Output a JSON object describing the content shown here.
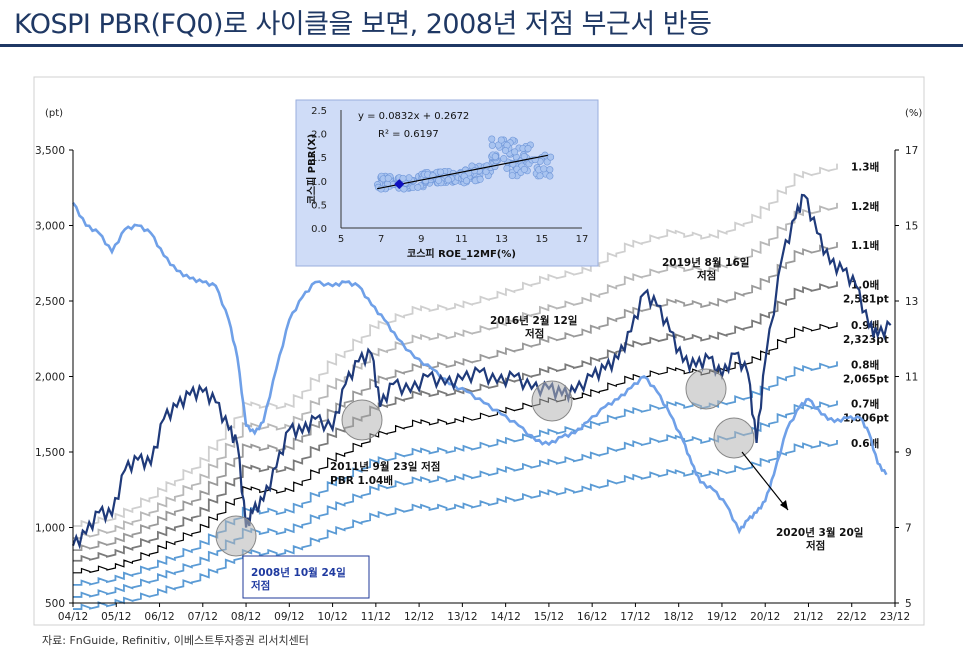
{
  "page": {
    "title": "KOSPI PBR(FQ0)로 사이클을 보면,  2008년 저점 부근서 반등",
    "source": "자료: FnGuide, Refinitiv, 이베스트투자증권 리서치센터"
  },
  "chart_data": [
    {
      "type": "line",
      "x_ticks": [
        "04/12",
        "05/12",
        "06/12",
        "07/12",
        "08/12",
        "09/12",
        "10/12",
        "11/12",
        "12/12",
        "13/12",
        "14/12",
        "15/12",
        "16/12",
        "17/12",
        "18/12",
        "19/12",
        "20/12",
        "21/12",
        "22/12",
        "23/12"
      ],
      "ylabel_left": "(pt)",
      "ylabel_right": "(%)",
      "ylim_left": [
        500,
        3500
      ],
      "yticks_left": [
        "500",
        "1,000",
        "1,500",
        "2,000",
        "2,500",
        "3,000",
        "3,500"
      ],
      "ylim_right": [
        5,
        17
      ],
      "yticks_right": [
        "5",
        "7",
        "9",
        "11",
        "13",
        "15",
        "17"
      ],
      "series": [
        {
          "label": "1.3배",
          "color": "#cfcfcf",
          "values": [
            1010,
            1070,
            1240,
            1440,
            1810,
            1800,
            2080,
            2320,
            2440,
            2460,
            2540,
            2640,
            2700,
            2860,
            2950,
            2920,
            3050,
            3320,
            3390
          ]
        },
        {
          "label": "1.2배",
          "color": "#b8b8b8",
          "values": [
            930,
            990,
            1140,
            1330,
            1670,
            1660,
            1920,
            2140,
            2250,
            2270,
            2340,
            2440,
            2500,
            2640,
            2720,
            2700,
            2820,
            3070,
            3130
          ]
        },
        {
          "label": "1.1배",
          "color": "#9a9a9a",
          "values": [
            850,
            910,
            1050,
            1220,
            1530,
            1520,
            1760,
            1960,
            2060,
            2080,
            2150,
            2230,
            2290,
            2420,
            2490,
            2470,
            2580,
            2810,
            2870
          ]
        },
        {
          "label": "1.0배",
          "sub": "2,581pt",
          "color": "#7a7a7a",
          "values": [
            780,
            830,
            950,
            1110,
            1390,
            1380,
            1600,
            1780,
            1880,
            1890,
            1950,
            2030,
            2080,
            2200,
            2260,
            2250,
            2350,
            2560,
            2610
          ]
        },
        {
          "label": "0.9배",
          "sub": "2,323pt",
          "color": "#000000",
          "values": [
            700,
            740,
            860,
            1000,
            1250,
            1240,
            1440,
            1600,
            1690,
            1700,
            1760,
            1830,
            1870,
            1980,
            2040,
            2020,
            2110,
            2300,
            2340
          ]
        },
        {
          "label": "0.8배",
          "sub": "2,065pt",
          "color": "#5b9bd5",
          "values": [
            620,
            660,
            760,
            890,
            1110,
            1100,
            1280,
            1430,
            1500,
            1510,
            1560,
            1620,
            1660,
            1760,
            1810,
            1800,
            1880,
            2040,
            2080
          ]
        },
        {
          "label": "0.7배",
          "sub": "1,806pt",
          "color": "#5b9bd5",
          "values": [
            540,
            580,
            670,
            780,
            970,
            970,
            1120,
            1250,
            1310,
            1320,
            1370,
            1420,
            1460,
            1540,
            1590,
            1570,
            1640,
            1790,
            1820
          ]
        },
        {
          "label": "0.6배",
          "color": "#5b9bd5",
          "values": [
            460,
            500,
            570,
            670,
            830,
            830,
            960,
            1070,
            1130,
            1130,
            1170,
            1220,
            1250,
            1320,
            1360,
            1350,
            1410,
            1530,
            1560
          ]
        }
      ],
      "kospi": {
        "color": "#1f3a7a",
        "points": [
          [
            0,
            880
          ],
          [
            0.3,
            960
          ],
          [
            0.6,
            1100
          ],
          [
            0.9,
            1080
          ],
          [
            1.2,
            1380
          ],
          [
            1.5,
            1450
          ],
          [
            1.8,
            1420
          ],
          [
            2.1,
            1720
          ],
          [
            2.4,
            1800
          ],
          [
            2.7,
            1880
          ],
          [
            3.0,
            1900
          ],
          [
            3.3,
            1830
          ],
          [
            3.6,
            1650
          ],
          [
            3.8,
            1550
          ],
          [
            4.0,
            1000
          ],
          [
            4.15,
            1100
          ],
          [
            4.4,
            1180
          ],
          [
            4.7,
            1400
          ],
          [
            5.0,
            1650
          ],
          [
            5.3,
            1630
          ],
          [
            5.6,
            1720
          ],
          [
            6.0,
            1650
          ],
          [
            6.3,
            1950
          ],
          [
            6.6,
            2100
          ],
          [
            6.9,
            2150
          ],
          [
            7.1,
            1800
          ],
          [
            7.4,
            1950
          ],
          [
            7.8,
            1900
          ],
          [
            8.2,
            2000
          ],
          [
            8.6,
            1950
          ],
          [
            9.0,
            1980
          ],
          [
            9.4,
            2030
          ],
          [
            9.8,
            1960
          ],
          [
            10.2,
            2000
          ],
          [
            10.6,
            1920
          ],
          [
            11.0,
            1920
          ],
          [
            11.3,
            1880
          ],
          [
            11.6,
            1900
          ],
          [
            12.0,
            2000
          ],
          [
            12.3,
            2050
          ],
          [
            12.6,
            2120
          ],
          [
            12.9,
            2300
          ],
          [
            13.2,
            2550
          ],
          [
            13.5,
            2470
          ],
          [
            13.8,
            2300
          ],
          [
            14.1,
            2100
          ],
          [
            14.4,
            2070
          ],
          [
            14.7,
            2120
          ],
          [
            15.0,
            2000
          ],
          [
            15.3,
            2150
          ],
          [
            15.6,
            2020
          ],
          [
            15.8,
            1560
          ],
          [
            16.0,
            2100
          ],
          [
            16.4,
            2800
          ],
          [
            16.7,
            3050
          ],
          [
            16.9,
            3200
          ],
          [
            17.2,
            2950
          ],
          [
            17.5,
            2750
          ],
          [
            17.8,
            2700
          ],
          [
            18.1,
            2600
          ],
          [
            18.4,
            2330
          ],
          [
            18.6,
            2270
          ],
          [
            18.9,
            2340
          ]
        ]
      },
      "pbr_pct": {
        "color": "#6fa0e8",
        "points": [
          [
            0,
            15.6
          ],
          [
            0.3,
            15.0
          ],
          [
            0.6,
            14.8
          ],
          [
            0.9,
            14.3
          ],
          [
            1.2,
            14.9
          ],
          [
            1.5,
            15.0
          ],
          [
            1.8,
            14.8
          ],
          [
            2.1,
            14.2
          ],
          [
            2.4,
            13.8
          ],
          [
            2.7,
            13.6
          ],
          [
            3.0,
            13.5
          ],
          [
            3.3,
            13.4
          ],
          [
            3.6,
            12.5
          ],
          [
            3.8,
            11.5
          ],
          [
            4.0,
            9.7
          ],
          [
            4.2,
            9.5
          ],
          [
            4.4,
            9.8
          ],
          [
            4.7,
            11.2
          ],
          [
            5.0,
            12.5
          ],
          [
            5.3,
            13.1
          ],
          [
            5.6,
            13.5
          ],
          [
            6.0,
            13.4
          ],
          [
            6.3,
            13.5
          ],
          [
            6.6,
            13.4
          ],
          [
            6.9,
            12.9
          ],
          [
            7.2,
            12.5
          ],
          [
            7.5,
            12.0
          ],
          [
            7.9,
            11.5
          ],
          [
            8.3,
            11.2
          ],
          [
            8.7,
            10.8
          ],
          [
            9.1,
            10.6
          ],
          [
            9.5,
            10.3
          ],
          [
            9.9,
            10.0
          ],
          [
            10.3,
            9.7
          ],
          [
            10.7,
            9.3
          ],
          [
            11.0,
            9.2
          ],
          [
            11.3,
            9.4
          ],
          [
            11.6,
            9.5
          ],
          [
            11.9,
            9.8
          ],
          [
            12.3,
            10.2
          ],
          [
            12.6,
            10.4
          ],
          [
            12.9,
            10.7
          ],
          [
            13.2,
            11.0
          ],
          [
            13.5,
            10.6
          ],
          [
            13.8,
            10.0
          ],
          [
            14.1,
            9.3
          ],
          [
            14.3,
            8.7
          ],
          [
            14.5,
            8.2
          ],
          [
            14.8,
            8.0
          ],
          [
            15.1,
            7.6
          ],
          [
            15.4,
            6.9
          ],
          [
            15.6,
            7.2
          ],
          [
            15.8,
            7.4
          ],
          [
            16.0,
            7.7
          ],
          [
            16.2,
            8.4
          ],
          [
            16.5,
            9.6
          ],
          [
            16.8,
            10.2
          ],
          [
            17.0,
            10.4
          ],
          [
            17.3,
            10.0
          ],
          [
            17.6,
            9.8
          ],
          [
            17.9,
            9.9
          ],
          [
            18.2,
            9.9
          ],
          [
            18.4,
            9.5
          ],
          [
            18.6,
            8.7
          ],
          [
            18.8,
            8.4
          ]
        ]
      },
      "annotations": [
        {
          "text": "2008년 10월 24일",
          "text2": "저점",
          "boxed": true
        },
        {
          "text": "2011년 9월 23일 저점",
          "text2": "PBR 1.04배"
        },
        {
          "text": "2016년 2월 12일",
          "text2": "저점"
        },
        {
          "text": "2019년 8월 16일",
          "text2": "저점"
        },
        {
          "text": "2020년 3월 20일",
          "text2": "저점"
        }
      ]
    },
    {
      "type": "scatter",
      "xlabel": "코스피 ROE_12MF(%)",
      "ylabel": "코스피 PBR(X)",
      "xlim": [
        5,
        17
      ],
      "xticks": [
        "5",
        "7",
        "9",
        "11",
        "13",
        "15",
        "17"
      ],
      "ylim": [
        0.0,
        2.5
      ],
      "yticks": [
        "0.0",
        "0.5",
        "1.0",
        "1.5",
        "2.0",
        "2.5"
      ],
      "equation": "y = 0.0832x + 0.2672",
      "r2": "R² = 0.6197",
      "trend": {
        "slope": 0.0832,
        "intercept": 0.2672,
        "x_range": [
          6.8,
          15.3
        ]
      },
      "highlight": [
        7.9,
        0.93
      ],
      "clusters": [
        {
          "x": [
            6.8,
            9.2
          ],
          "y": [
            0.82,
            1.1
          ],
          "n": 60
        },
        {
          "x": [
            9.0,
            11.5
          ],
          "y": [
            0.95,
            1.2
          ],
          "n": 70
        },
        {
          "x": [
            11.0,
            12.5
          ],
          "y": [
            1.0,
            1.32
          ],
          "n": 40
        },
        {
          "x": [
            12.5,
            14.5
          ],
          "y": [
            1.2,
            1.9
          ],
          "n": 55
        },
        {
          "x": [
            13.5,
            15.5
          ],
          "y": [
            1.1,
            1.55
          ],
          "n": 30
        }
      ]
    }
  ]
}
